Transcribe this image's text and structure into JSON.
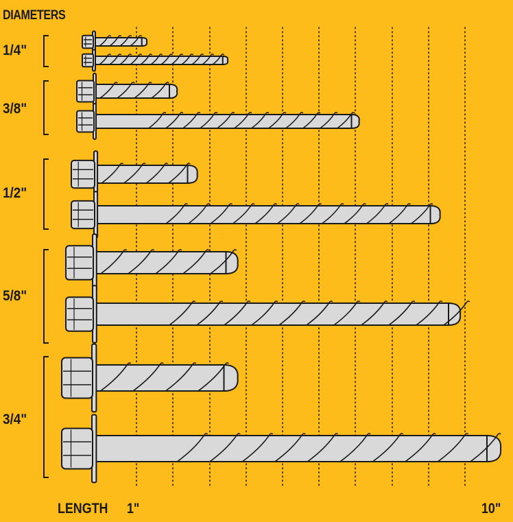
{
  "title": "DIAMETERS",
  "diameters": [
    {
      "label": "1/4\"",
      "lengths_in": [
        1.25,
        3.25
      ]
    },
    {
      "label": "3/8\"",
      "lengths_in": [
        2.0,
        6.5
      ]
    },
    {
      "label": "1/2\"",
      "lengths_in": [
        2.5,
        8.5
      ]
    },
    {
      "label": "5/8\"",
      "lengths_in": [
        3.5,
        9.0
      ]
    },
    {
      "label": "3/4\"",
      "lengths_in": [
        3.5,
        10.0
      ]
    }
  ],
  "axis": {
    "label": "LENGTH",
    "min_label": "1\"",
    "max_label": "10\"",
    "min": 1,
    "max": 10
  },
  "colors": {
    "background": "#FDBC1A",
    "screw": "#D9D9D9",
    "outline": "#1a1a1a"
  }
}
